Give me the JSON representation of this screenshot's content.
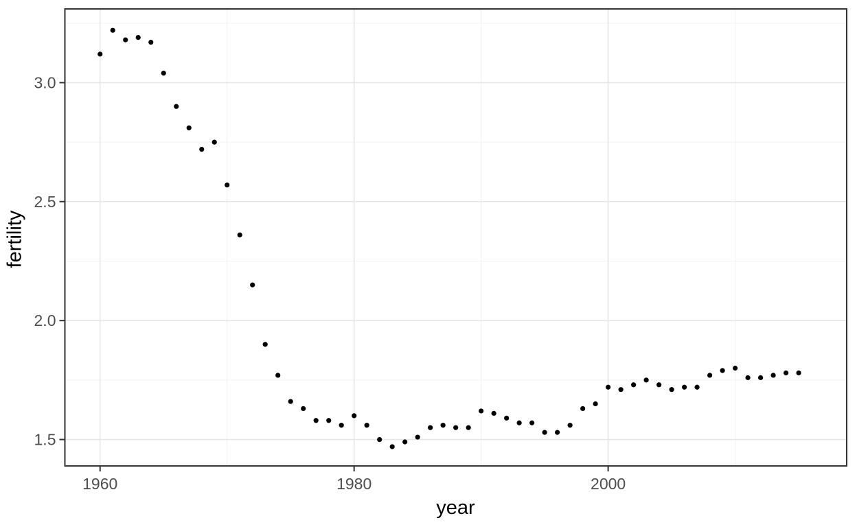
{
  "chart_data": {
    "type": "scatter",
    "title": "",
    "xlabel": "year",
    "ylabel": "fertility",
    "x_tick_labels": [
      "1960",
      "1980",
      "2000"
    ],
    "x_major_breaks": [
      1960,
      1980,
      2000
    ],
    "x_minor_breaks": [
      1970,
      1990,
      2010
    ],
    "y_tick_labels": [
      "1.5",
      "2.0",
      "2.5",
      "3.0"
    ],
    "y_major_breaks": [
      1.5,
      2.0,
      2.5,
      3.0
    ],
    "y_minor_breaks": [
      1.75,
      2.25,
      2.75,
      3.25
    ],
    "xlim": [
      1957.23,
      2018.78
    ],
    "ylim": [
      1.389,
      3.31
    ],
    "grid": "major-and-minor",
    "legend_position": "none",
    "series": [
      {
        "name": "fertility",
        "x": [
          1960,
          1961,
          1962,
          1963,
          1964,
          1965,
          1966,
          1967,
          1968,
          1969,
          1970,
          1971,
          1972,
          1973,
          1974,
          1975,
          1976,
          1977,
          1978,
          1979,
          1980,
          1981,
          1982,
          1983,
          1984,
          1985,
          1986,
          1987,
          1988,
          1989,
          1990,
          1991,
          1992,
          1993,
          1994,
          1995,
          1996,
          1997,
          1998,
          1999,
          2000,
          2001,
          2002,
          2003,
          2004,
          2005,
          2006,
          2007,
          2008,
          2009,
          2010,
          2011,
          2012,
          2013,
          2014,
          2015
        ],
        "values": [
          3.12,
          3.22,
          3.18,
          3.19,
          3.17,
          3.04,
          2.9,
          2.81,
          2.72,
          2.75,
          2.57,
          2.36,
          2.15,
          1.9,
          1.77,
          1.66,
          1.63,
          1.58,
          1.58,
          1.56,
          1.6,
          1.56,
          1.5,
          1.47,
          1.49,
          1.51,
          1.55,
          1.56,
          1.55,
          1.55,
          1.62,
          1.61,
          1.59,
          1.57,
          1.57,
          1.53,
          1.53,
          1.56,
          1.63,
          1.65,
          1.72,
          1.71,
          1.73,
          1.75,
          1.73,
          1.71,
          1.72,
          1.72,
          1.77,
          1.79,
          1.8,
          1.76,
          1.76,
          1.77,
          1.78,
          1.78
        ]
      }
    ],
    "colors": {
      "background": "#ffffff",
      "panel_background": "#ffffff",
      "panel_border": "#333333",
      "grid_major": "#e6e6e6",
      "grid_minor": "#f2f2f2",
      "point": "#000000",
      "tick_mark": "#333333",
      "tick_label": "#4d4d4d",
      "axis_title": "#000000"
    }
  }
}
